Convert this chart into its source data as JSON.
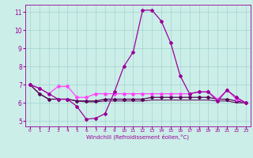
{
  "xlabel": "Windchill (Refroidissement éolien,°C)",
  "bg_color": "#cceee8",
  "line_color": "#990099",
  "dark_line_color": "#550055",
  "pink_line_color": "#ff44ff",
  "ylim": [
    4.7,
    11.4
  ],
  "xlim": [
    -0.5,
    23.5
  ],
  "yticks": [
    5,
    6,
    7,
    8,
    9,
    10,
    11
  ],
  "xticks": [
    0,
    1,
    2,
    3,
    4,
    5,
    6,
    7,
    8,
    9,
    10,
    11,
    12,
    13,
    14,
    15,
    16,
    17,
    18,
    19,
    20,
    21,
    22,
    23
  ],
  "hours": [
    0,
    1,
    2,
    3,
    4,
    5,
    6,
    7,
    8,
    9,
    10,
    11,
    12,
    13,
    14,
    15,
    16,
    17,
    18,
    19,
    20,
    21,
    22,
    23
  ],
  "line_main": [
    7.0,
    6.8,
    6.5,
    6.2,
    6.2,
    5.8,
    5.1,
    5.15,
    5.4,
    6.6,
    8.0,
    8.8,
    11.1,
    11.1,
    10.5,
    9.3,
    7.5,
    6.5,
    6.6,
    6.6,
    6.1,
    6.7,
    6.3,
    6.0
  ],
  "line_pink": [
    7.0,
    6.8,
    6.5,
    6.9,
    6.9,
    6.3,
    6.3,
    6.5,
    6.5,
    6.5,
    6.5,
    6.5,
    6.5,
    6.5,
    6.5,
    6.5,
    6.5,
    6.5,
    6.6,
    6.6,
    6.2,
    6.7,
    6.2,
    6.0
  ],
  "line_dark1": [
    7.0,
    6.5,
    6.2,
    6.2,
    6.2,
    6.1,
    6.1,
    6.1,
    6.2,
    6.2,
    6.2,
    6.2,
    6.2,
    6.3,
    6.3,
    6.3,
    6.3,
    6.3,
    6.3,
    6.3,
    6.2,
    6.2,
    6.1,
    6.0
  ],
  "line_dark2": [
    7.0,
    6.5,
    6.2,
    6.2,
    6.2,
    6.1,
    6.05,
    6.05,
    6.1,
    6.1,
    6.1,
    6.1,
    6.1,
    6.15,
    6.15,
    6.15,
    6.15,
    6.15,
    6.15,
    6.15,
    6.1,
    6.1,
    6.0,
    6.0
  ],
  "grid_color": "#99cccc",
  "marker": "D",
  "markersize": 2.0,
  "linewidth": 0.9
}
